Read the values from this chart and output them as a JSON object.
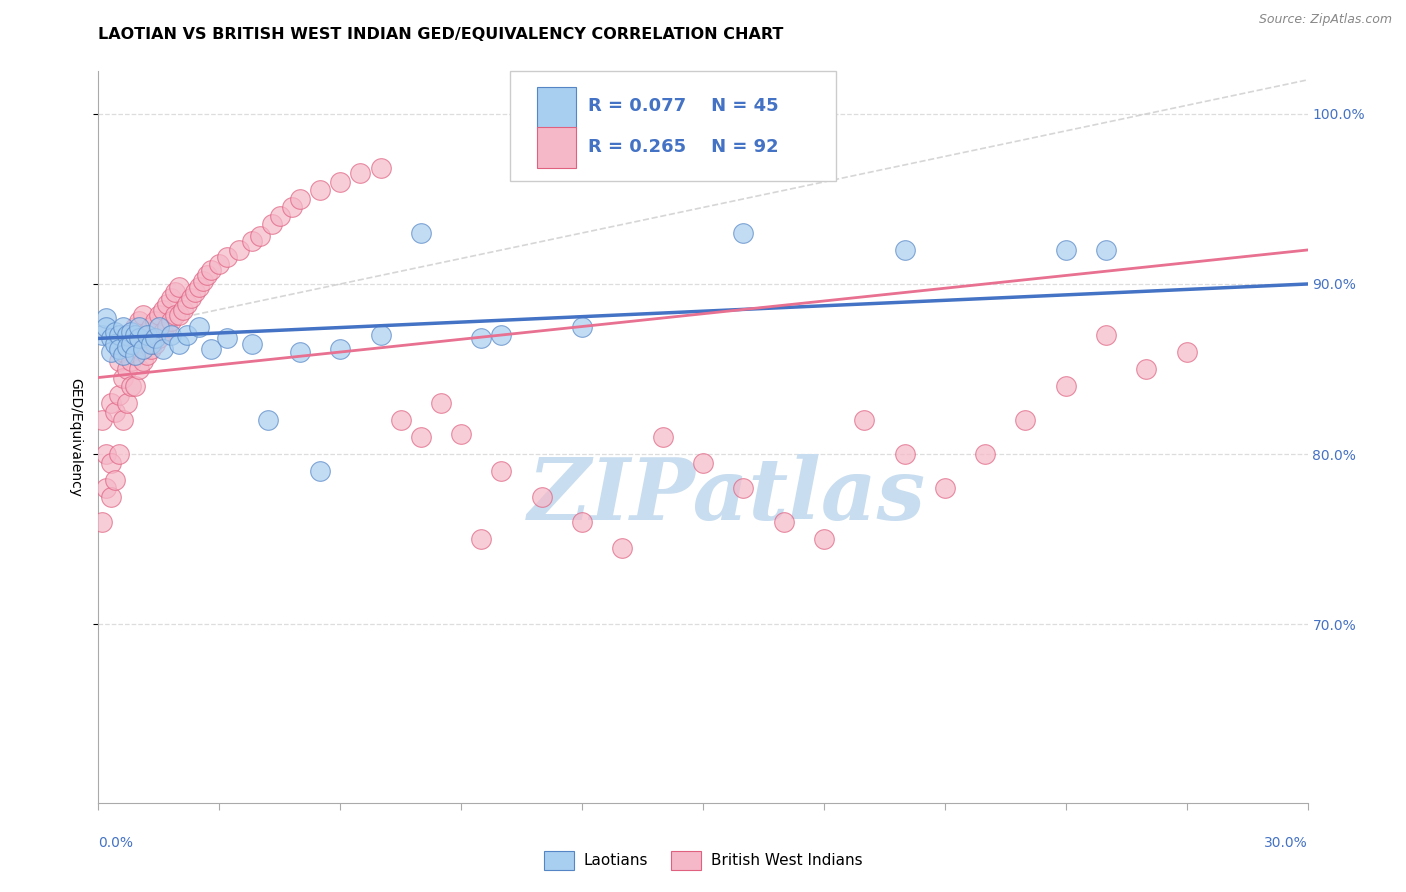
{
  "title": "LAOTIAN VS BRITISH WEST INDIAN GED/EQUIVALENCY CORRELATION CHART",
  "source": "Source: ZipAtlas.com",
  "ylabel": "GED/Equivalency",
  "ytick_values": [
    1.0,
    0.9,
    0.8,
    0.7
  ],
  "ytick_labels": [
    "100.0%",
    "90.0%",
    "80.0%",
    "70.0%"
  ],
  "xmin": 0.0,
  "xmax": 0.3,
  "ymin": 0.595,
  "ymax": 1.025,
  "legend_blue_r": "R = 0.077",
  "legend_blue_n": "N = 45",
  "legend_pink_r": "R = 0.265",
  "legend_pink_n": "N = 92",
  "legend_label_blue": "Laotians",
  "legend_label_pink": "British West Indians",
  "blue_color": "#A8CEF0",
  "pink_color": "#F5B8C8",
  "trend_blue_color": "#4472C4",
  "trend_pink_color": "#E87090",
  "ref_line_color": "#CCCCCC",
  "blue_dots_x": [
    0.001,
    0.002,
    0.002,
    0.003,
    0.003,
    0.004,
    0.004,
    0.005,
    0.005,
    0.006,
    0.006,
    0.007,
    0.007,
    0.008,
    0.008,
    0.009,
    0.009,
    0.01,
    0.01,
    0.011,
    0.012,
    0.013,
    0.014,
    0.015,
    0.016,
    0.018,
    0.02,
    0.022,
    0.025,
    0.028,
    0.032,
    0.038,
    0.042,
    0.05,
    0.055,
    0.06,
    0.07,
    0.08,
    0.095,
    0.1,
    0.12,
    0.16,
    0.2,
    0.24,
    0.25
  ],
  "blue_dots_y": [
    0.87,
    0.88,
    0.875,
    0.868,
    0.86,
    0.872,
    0.865,
    0.87,
    0.862,
    0.875,
    0.858,
    0.87,
    0.863,
    0.872,
    0.865,
    0.87,
    0.858,
    0.868,
    0.875,
    0.862,
    0.87,
    0.865,
    0.868,
    0.875,
    0.862,
    0.87,
    0.865,
    0.87,
    0.875,
    0.862,
    0.868,
    0.865,
    0.82,
    0.86,
    0.79,
    0.862,
    0.87,
    0.93,
    0.868,
    0.87,
    0.875,
    0.93,
    0.92,
    0.92,
    0.92
  ],
  "pink_dots_x": [
    0.001,
    0.001,
    0.002,
    0.002,
    0.003,
    0.003,
    0.003,
    0.004,
    0.004,
    0.005,
    0.005,
    0.005,
    0.006,
    0.006,
    0.006,
    0.007,
    0.007,
    0.007,
    0.008,
    0.008,
    0.008,
    0.009,
    0.009,
    0.009,
    0.01,
    0.01,
    0.01,
    0.011,
    0.011,
    0.011,
    0.012,
    0.012,
    0.013,
    0.013,
    0.014,
    0.014,
    0.015,
    0.015,
    0.016,
    0.016,
    0.017,
    0.017,
    0.018,
    0.018,
    0.019,
    0.019,
    0.02,
    0.02,
    0.021,
    0.022,
    0.023,
    0.024,
    0.025,
    0.026,
    0.027,
    0.028,
    0.03,
    0.032,
    0.035,
    0.038,
    0.04,
    0.043,
    0.045,
    0.048,
    0.05,
    0.055,
    0.06,
    0.065,
    0.07,
    0.075,
    0.08,
    0.085,
    0.09,
    0.095,
    0.1,
    0.11,
    0.12,
    0.13,
    0.14,
    0.15,
    0.16,
    0.17,
    0.18,
    0.19,
    0.2,
    0.21,
    0.22,
    0.23,
    0.24,
    0.25,
    0.26,
    0.27
  ],
  "pink_dots_y": [
    0.76,
    0.82,
    0.78,
    0.8,
    0.775,
    0.795,
    0.83,
    0.785,
    0.825,
    0.8,
    0.835,
    0.855,
    0.82,
    0.845,
    0.86,
    0.83,
    0.85,
    0.87,
    0.84,
    0.855,
    0.87,
    0.84,
    0.858,
    0.875,
    0.85,
    0.862,
    0.878,
    0.855,
    0.868,
    0.882,
    0.858,
    0.872,
    0.862,
    0.875,
    0.865,
    0.878,
    0.868,
    0.882,
    0.872,
    0.885,
    0.875,
    0.888,
    0.878,
    0.892,
    0.882,
    0.895,
    0.882,
    0.898,
    0.885,
    0.888,
    0.892,
    0.895,
    0.898,
    0.902,
    0.905,
    0.908,
    0.912,
    0.916,
    0.92,
    0.925,
    0.928,
    0.935,
    0.94,
    0.945,
    0.95,
    0.955,
    0.96,
    0.965,
    0.968,
    0.82,
    0.81,
    0.83,
    0.812,
    0.75,
    0.79,
    0.775,
    0.76,
    0.745,
    0.81,
    0.795,
    0.78,
    0.76,
    0.75,
    0.82,
    0.8,
    0.78,
    0.8,
    0.82,
    0.84,
    0.87,
    0.85,
    0.86
  ],
  "background_color": "#FFFFFF",
  "grid_color": "#DDDDDD",
  "watermark_text": "ZIPatlas",
  "watermark_color": "#C8DDEF",
  "title_fontsize": 11.5,
  "axis_label_fontsize": 10,
  "tick_fontsize": 10,
  "legend_fontsize": 13,
  "source_fontsize": 9
}
